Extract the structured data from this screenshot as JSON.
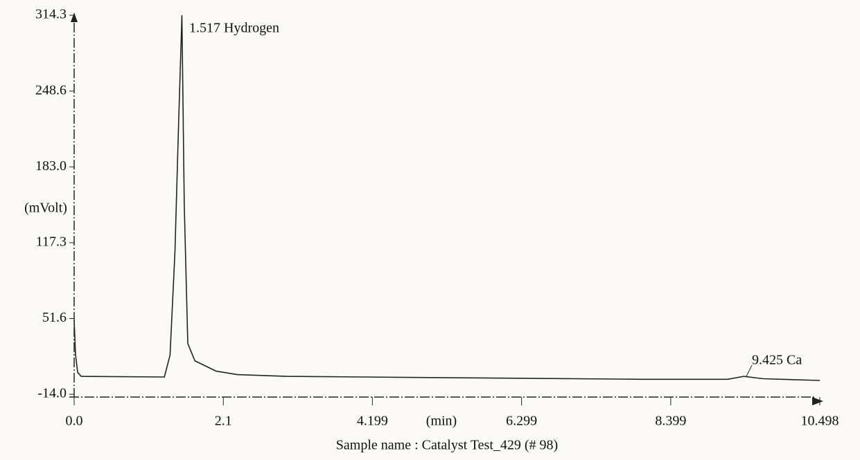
{
  "chart_data": {
    "type": "line",
    "y_label": "(mVolt)",
    "x_label": "(min)",
    "caption": "Sample name : Catalyst Test_429 (# 98)",
    "annotations": [
      "1.517  Hydrogen",
      "9.425  Ca"
    ],
    "x": [
      0,
      0.02,
      0.05,
      0.1,
      1.27,
      1.35,
      1.42,
      1.47,
      1.517,
      1.55,
      1.6,
      1.7,
      2.0,
      2.3,
      3.0,
      5.0,
      8.0,
      9.2,
      9.425,
      9.7,
      10.498
    ],
    "values": [
      50,
      20,
      5,
      1.5,
      1,
      20,
      110,
      220,
      314,
      150,
      30,
      15,
      6,
      3,
      1.5,
      0.5,
      -1,
      -1,
      1.5,
      -0.5,
      -2
    ],
    "color": "#222222",
    "xlim": [
      0,
      10.498
    ],
    "xticks": [
      {
        "value": 0,
        "label": "0.0"
      },
      2.1,
      4.199,
      6.299,
      8.399,
      10.498
    ],
    "ylim": [
      -14,
      314.3
    ],
    "yticks": [
      {
        "value": -14,
        "label": "-14.0"
      },
      51.6,
      117.3,
      {
        "value": 183,
        "label": "183.0"
      },
      248.6,
      314.3
    ],
    "grid": false
  }
}
